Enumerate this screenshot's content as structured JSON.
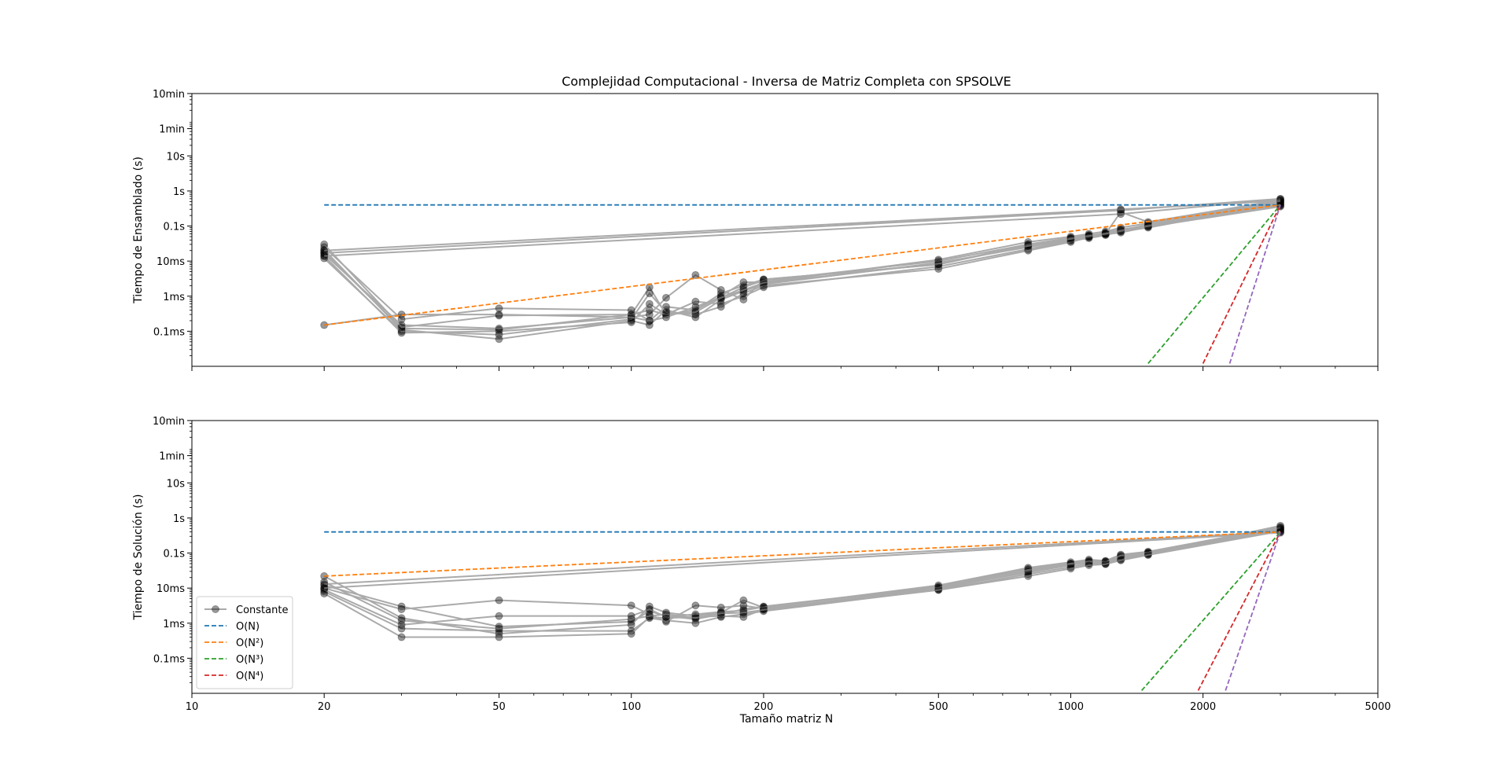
{
  "figure": {
    "title": "Complejidad Computacional - Inversa de Matriz Completa con SPSOLVE",
    "xlabel": "Tamaño matriz N"
  },
  "chart_data": [
    {
      "type": "line",
      "panel": "top",
      "title": "Complejidad Computacional - Inversa de Matriz Completa con SPSOLVE",
      "xlabel": "",
      "ylabel": "Tiempo de Ensamblado (s)",
      "xscale": "log",
      "yscale": "log",
      "xlim": [
        10,
        5000
      ],
      "ylim": [
        1e-05,
        600
      ],
      "xticks": [
        10,
        20,
        50,
        100,
        200,
        500,
        1000,
        2000,
        5000
      ],
      "xtick_labels": [
        "",
        "",
        "",
        "",
        "",
        "",
        "",
        "",
        ""
      ],
      "yticks": [
        0.0001,
        0.001,
        0.01,
        0.1,
        1,
        10,
        60,
        600
      ],
      "ytick_labels": [
        "0.1ms",
        "1ms",
        "10ms",
        "0.1s",
        "1s",
        "10s",
        "1min",
        "10min"
      ],
      "legend": false,
      "x": [
        20,
        30,
        50,
        100,
        110,
        120,
        140,
        160,
        180,
        200,
        500,
        800,
        1000,
        1100,
        1200,
        1300,
        1500,
        3000
      ],
      "series": [
        {
          "values": [
            0.018,
            0.00012,
            0.00011,
            0.0003,
            0.0018,
            0.0003,
            0.0004,
            0.0012,
            0.002,
            0.003,
            0.008,
            0.03,
            0.045,
            0.055,
            0.06,
            0.075,
            0.11,
            0.42
          ]
        },
        {
          "values": [
            0.021,
            0.00011,
            6e-05,
            0.0002,
            0.00015,
            0.0004,
            0.00025,
            0.0008,
            0.0014,
            0.0022,
            0.009,
            0.025,
            0.04,
            0.05,
            0.065,
            0.08,
            0.1,
            0.38
          ]
        },
        {
          "values": [
            0.014,
            9e-05,
            0.0001,
            0.00018,
            0.0006,
            0.0003,
            0.0007,
            0.0006,
            0.001,
            0.0018,
            0.007,
            0.022,
            0.038,
            0.045,
            0.055,
            0.07,
            0.09,
            0.45
          ]
        },
        {
          "values": [
            0.025,
            0.00022,
            0.00045,
            0.0004,
            0.0002,
            0.0005,
            0.0004,
            0.001,
            0.0025,
            0.0025,
            0.011,
            0.035,
            0.05,
            0.06,
            0.07,
            0.09,
            0.12,
            0.5
          ]
        },
        {
          "values": [
            0.016,
            0.00015,
            0.00012,
            0.00025,
            0.0003,
            0.0009,
            0.004,
            0.0015,
            0.0008,
            0.003,
            0.008,
            0.028,
            0.042,
            0.05,
            0.06,
            0.25,
            0.13,
            0.55
          ]
        },
        {
          "values": [
            0.012,
            0.0001,
            8e-05,
            0.00022,
            0.0012,
            0.00035,
            0.0003,
            0.0005,
            0.0012,
            0.002,
            0.006,
            0.02,
            0.035,
            0.048,
            0.058,
            0.065,
            0.095,
            0.36
          ]
        },
        {
          "values": [
            0.03,
            0.00013,
            0.00028,
            0.0003,
            0.0004,
            0.0003,
            0.00035,
            0.0009,
            0.0018,
            0.0028,
            0.01,
            0.03,
            0.046,
            0.054,
            0.062,
            0.078,
            0.105,
            0.48
          ]
        },
        {
          "values": [
            0.00015,
            0.0003,
            0.0003,
            0.00025,
            0.0002,
            0.00025,
            0.0005,
            0.0009,
            0.0015,
            0.0024,
            0.0085,
            0.027,
            0.043,
            0.052,
            0.06,
            0.072,
            0.1,
            0.4
          ]
        },
        {
          "values": [
            0.017,
            null,
            null,
            null,
            null,
            null,
            null,
            null,
            null,
            null,
            null,
            null,
            null,
            null,
            null,
            0.28,
            null,
            0.6
          ]
        },
        {
          "values": [
            0.014,
            null,
            null,
            null,
            null,
            null,
            null,
            null,
            null,
            null,
            null,
            null,
            null,
            null,
            null,
            0.22,
            null,
            0.58
          ]
        },
        {
          "values": [
            0.02,
            null,
            null,
            null,
            null,
            null,
            null,
            null,
            null,
            null,
            null,
            null,
            null,
            null,
            null,
            0.3,
            null,
            0.52
          ]
        }
      ],
      "reference_lines": [
        {
          "name": "O(N)",
          "color": "#1f77b4",
          "x": [
            20,
            3000
          ],
          "y": [
            0.4,
            0.4
          ]
        },
        {
          "name": "O(N²)",
          "color": "#ff7f0e",
          "x": [
            20,
            3000
          ],
          "y": [
            0.00015,
            0.4
          ]
        },
        {
          "name": "O(N³)",
          "color": "#2ca02c",
          "x": [
            1500,
            3000
          ],
          "y": [
            1.2e-05,
            0.4
          ]
        },
        {
          "name": "O(N⁴)",
          "color": "#d62728",
          "x": [
            2000,
            3000
          ],
          "y": [
            1.2e-05,
            0.4
          ]
        },
        {
          "name": "",
          "color": "#9467bd",
          "x": [
            2300,
            3000
          ],
          "y": [
            1.2e-05,
            0.4
          ]
        }
      ]
    },
    {
      "type": "line",
      "panel": "bottom",
      "title": "",
      "xlabel": "Tamaño matriz N",
      "ylabel": "Tiempo de Solución (s)",
      "xscale": "log",
      "yscale": "log",
      "xlim": [
        10,
        5000
      ],
      "ylim": [
        1e-05,
        600
      ],
      "xticks": [
        10,
        20,
        50,
        100,
        200,
        500,
        1000,
        2000,
        5000
      ],
      "xtick_labels": [
        "10",
        "20",
        "50",
        "100",
        "200",
        "500",
        "1000",
        "2000",
        "5000"
      ],
      "yticks": [
        0.0001,
        0.001,
        0.01,
        0.1,
        1,
        10,
        60,
        600
      ],
      "ytick_labels": [
        "0.1ms",
        "1ms",
        "10ms",
        "0.1s",
        "1s",
        "10s",
        "1min",
        "10min"
      ],
      "legend": "lower-left",
      "legend_entries": [
        {
          "label": "Constante",
          "color": "#808080",
          "marker": "circle"
        },
        {
          "label": "O(N)",
          "color": "#1f77b4",
          "style": "dashed"
        },
        {
          "label": "O(N²)",
          "color": "#ff7f0e",
          "style": "dashed"
        },
        {
          "label": "O(N³)",
          "color": "#2ca02c",
          "style": "dashed"
        },
        {
          "label": "O(N⁴)",
          "color": "#d62728",
          "style": "dashed"
        }
      ],
      "x": [
        20,
        30,
        50,
        100,
        110,
        120,
        140,
        160,
        180,
        200,
        500,
        800,
        1000,
        1100,
        1200,
        1300,
        1500,
        3000
      ],
      "series": [
        {
          "values": [
            0.012,
            0.003,
            0.0008,
            0.0011,
            0.0022,
            0.0016,
            0.0013,
            0.0018,
            0.0025,
            0.003,
            0.011,
            0.035,
            0.05,
            0.06,
            0.055,
            0.08,
            0.1,
            0.5
          ]
        },
        {
          "values": [
            0.008,
            0.0007,
            0.0006,
            0.0006,
            0.0014,
            0.0012,
            0.001,
            0.0015,
            0.0018,
            0.0022,
            0.009,
            0.025,
            0.04,
            0.05,
            0.05,
            0.07,
            0.09,
            0.45
          ]
        },
        {
          "values": [
            0.022,
            0.0014,
            0.0005,
            0.0009,
            0.003,
            0.002,
            0.0016,
            0.002,
            0.0045,
            0.0028,
            0.012,
            0.038,
            0.055,
            0.065,
            0.06,
            0.09,
            0.11,
            0.55
          ]
        },
        {
          "values": [
            0.007,
            0.0004,
            0.0004,
            0.0005,
            0.0015,
            0.0014,
            0.0015,
            0.0016,
            0.0015,
            0.0025,
            0.01,
            0.028,
            0.045,
            0.055,
            0.05,
            0.075,
            0.095,
            0.6
          ]
        },
        {
          "values": [
            0.01,
            0.0025,
            0.0045,
            0.0032,
            0.0018,
            0.0011,
            0.0032,
            0.0028,
            0.0032,
            0.0026,
            0.0095,
            0.03,
            0.048,
            0.052,
            0.058,
            0.065,
            0.1,
            0.48
          ]
        },
        {
          "values": [
            0.009,
            0.0009,
            0.0016,
            0.0016,
            0.0025,
            0.0015,
            0.0018,
            0.0021,
            0.0023,
            0.0029,
            0.0105,
            0.033,
            0.05,
            0.058,
            0.056,
            0.085,
            0.105,
            0.52
          ]
        },
        {
          "values": [
            0.015,
            0.0012,
            0.0007,
            0.0013,
            0.0016,
            0.0018,
            0.0014,
            0.0019,
            0.002,
            0.0024,
            0.0088,
            0.022,
            0.036,
            0.045,
            0.048,
            0.062,
            0.088,
            0.42
          ]
        },
        {
          "values": [
            0.013,
            null,
            null,
            null,
            null,
            null,
            null,
            null,
            null,
            null,
            null,
            null,
            null,
            null,
            null,
            null,
            null,
            0.4
          ]
        },
        {
          "values": [
            0.01,
            null,
            null,
            null,
            null,
            null,
            null,
            null,
            null,
            null,
            null,
            null,
            null,
            null,
            null,
            null,
            null,
            0.38
          ]
        }
      ],
      "reference_lines": [
        {
          "name": "O(N)",
          "color": "#1f77b4",
          "x": [
            20,
            3000
          ],
          "y": [
            0.4,
            0.4
          ]
        },
        {
          "name": "O(N²)",
          "color": "#ff7f0e",
          "x": [
            20,
            3000
          ],
          "y": [
            0.022,
            0.4
          ]
        },
        {
          "name": "O(N³)",
          "color": "#2ca02c",
          "x": [
            1450,
            3000
          ],
          "y": [
            1.2e-05,
            0.4
          ]
        },
        {
          "name": "O(N⁴)",
          "color": "#d62728",
          "x": [
            1950,
            3000
          ],
          "y": [
            1.2e-05,
            0.4
          ]
        },
        {
          "name": "",
          "color": "#9467bd",
          "x": [
            2250,
            3000
          ],
          "y": [
            1.2e-05,
            0.4
          ]
        }
      ]
    }
  ]
}
